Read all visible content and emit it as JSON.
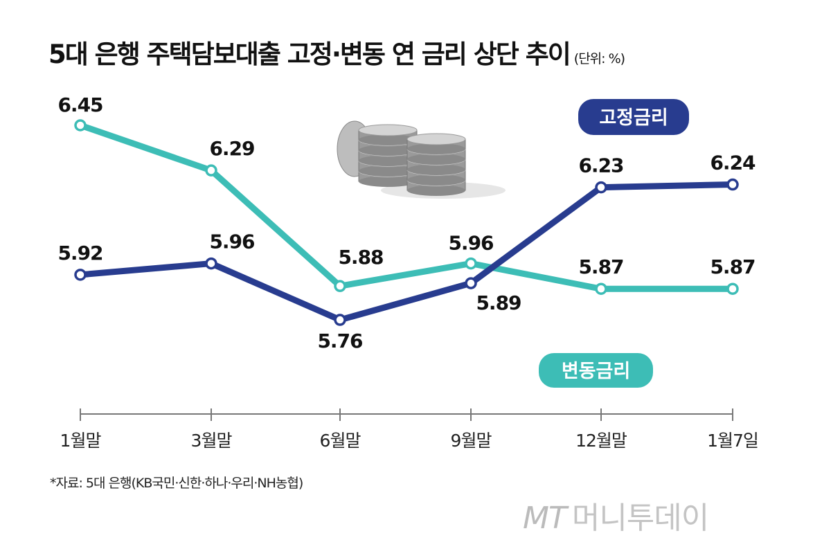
{
  "chart_data": {
    "type": "line",
    "title": "5대 은행 주택담보대출 고정·변동 연 금리 상단 추이",
    "unit": "(단위: %)",
    "categories": [
      "1월말",
      "3월말",
      "6월말",
      "9월말",
      "12월말",
      "1월7일"
    ],
    "series": [
      {
        "name": "고정금리",
        "color": "#283c8f",
        "values": [
          5.92,
          5.96,
          5.76,
          5.89,
          6.23,
          6.24
        ]
      },
      {
        "name": "변동금리",
        "color": "#3dbdb6",
        "values": [
          6.45,
          6.29,
          5.88,
          5.96,
          5.87,
          5.87
        ]
      }
    ],
    "grid": false,
    "yaxis_visible": false
  },
  "source": "*자료: 5대 은행(KB국민·신한·하나·우리·NH농협)",
  "logo": {
    "mark": "MT",
    "name": "머니투데이"
  }
}
